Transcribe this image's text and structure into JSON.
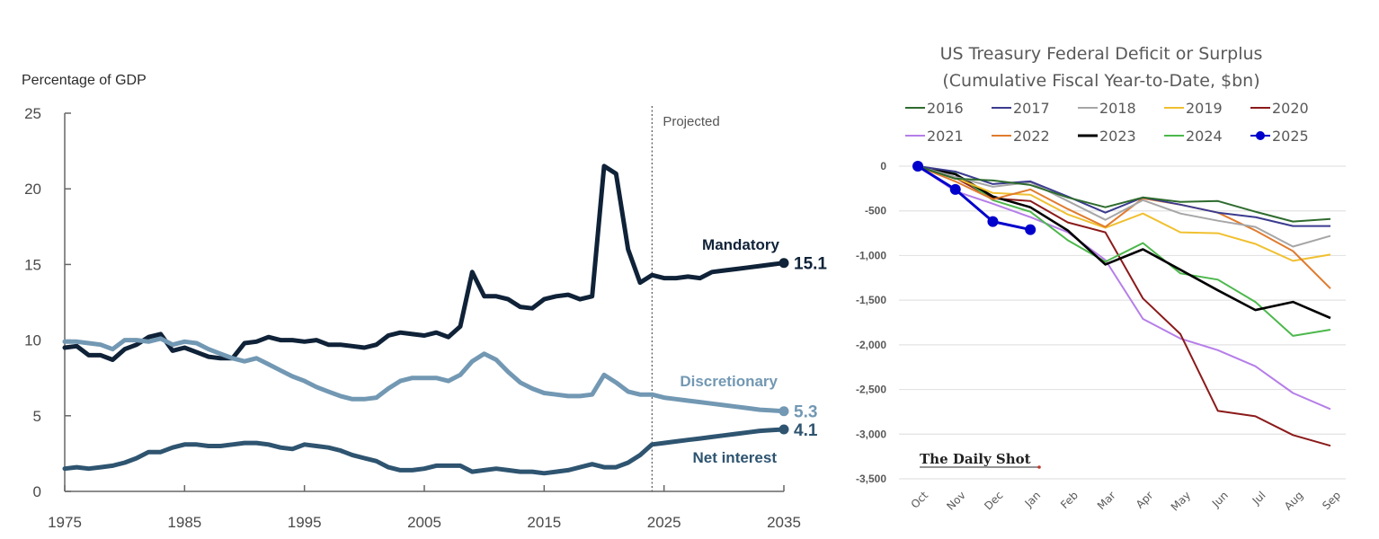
{
  "chart_data": [
    {
      "type": "line",
      "title": "",
      "ylabel": "Percentage of GDP",
      "xlabel": "",
      "xlim": [
        1975,
        2035
      ],
      "ylim": [
        0,
        25
      ],
      "x_ticks": [
        "1975",
        "1985",
        "1995",
        "2005",
        "2015",
        "2025",
        "2035"
      ],
      "y_ticks": [
        "0",
        "5",
        "10",
        "15",
        "20",
        "25"
      ],
      "grid": false,
      "projection_start": 2024,
      "projection_label": "Projected",
      "series": [
        {
          "name": "Mandatory",
          "color": "#0f2238",
          "end_label": "15.1",
          "points": [
            [
              1975,
              9.5
            ],
            [
              1976,
              9.6
            ],
            [
              1977,
              9.0
            ],
            [
              1978,
              9.0
            ],
            [
              1979,
              8.7
            ],
            [
              1980,
              9.4
            ],
            [
              1981,
              9.7
            ],
            [
              1982,
              10.2
            ],
            [
              1983,
              10.4
            ],
            [
              1984,
              9.3
            ],
            [
              1985,
              9.5
            ],
            [
              1986,
              9.2
            ],
            [
              1987,
              8.9
            ],
            [
              1988,
              8.8
            ],
            [
              1989,
              8.8
            ],
            [
              1990,
              9.8
            ],
            [
              1991,
              9.9
            ],
            [
              1992,
              10.2
            ],
            [
              1993,
              10.0
            ],
            [
              1994,
              10.0
            ],
            [
              1995,
              9.9
            ],
            [
              1996,
              10.0
            ],
            [
              1997,
              9.7
            ],
            [
              1998,
              9.7
            ],
            [
              1999,
              9.6
            ],
            [
              2000,
              9.5
            ],
            [
              2001,
              9.7
            ],
            [
              2002,
              10.3
            ],
            [
              2003,
              10.5
            ],
            [
              2004,
              10.4
            ],
            [
              2005,
              10.3
            ],
            [
              2006,
              10.5
            ],
            [
              2007,
              10.2
            ],
            [
              2008,
              10.9
            ],
            [
              2009,
              14.5
            ],
            [
              2010,
              12.9
            ],
            [
              2011,
              12.9
            ],
            [
              2012,
              12.7
            ],
            [
              2013,
              12.2
            ],
            [
              2014,
              12.1
            ],
            [
              2015,
              12.7
            ],
            [
              2016,
              12.9
            ],
            [
              2017,
              13.0
            ],
            [
              2018,
              12.7
            ],
            [
              2019,
              12.9
            ],
            [
              2020,
              21.5
            ],
            [
              2021,
              21.0
            ],
            [
              2022,
              16.0
            ],
            [
              2023,
              13.8
            ],
            [
              2024,
              14.3
            ],
            [
              2025,
              14.1
            ],
            [
              2026,
              14.1
            ],
            [
              2027,
              14.2
            ],
            [
              2028,
              14.1
            ],
            [
              2029,
              14.5
            ],
            [
              2030,
              14.6
            ],
            [
              2031,
              14.7
            ],
            [
              2032,
              14.8
            ],
            [
              2033,
              14.9
            ],
            [
              2034,
              15.0
            ],
            [
              2035,
              15.1
            ]
          ]
        },
        {
          "name": "Discretionary",
          "color": "#7298b3",
          "end_label": "5.3",
          "points": [
            [
              1975,
              9.9
            ],
            [
              1976,
              9.9
            ],
            [
              1977,
              9.8
            ],
            [
              1978,
              9.7
            ],
            [
              1979,
              9.4
            ],
            [
              1980,
              10.0
            ],
            [
              1981,
              10.0
            ],
            [
              1982,
              9.9
            ],
            [
              1983,
              10.1
            ],
            [
              1984,
              9.7
            ],
            [
              1985,
              9.9
            ],
            [
              1986,
              9.8
            ],
            [
              1987,
              9.4
            ],
            [
              1988,
              9.1
            ],
            [
              1989,
              8.8
            ],
            [
              1990,
              8.6
            ],
            [
              1991,
              8.8
            ],
            [
              1992,
              8.4
            ],
            [
              1993,
              8.0
            ],
            [
              1994,
              7.6
            ],
            [
              1995,
              7.3
            ],
            [
              1996,
              6.9
            ],
            [
              1997,
              6.6
            ],
            [
              1998,
              6.3
            ],
            [
              1999,
              6.1
            ],
            [
              2000,
              6.1
            ],
            [
              2001,
              6.2
            ],
            [
              2002,
              6.8
            ],
            [
              2003,
              7.3
            ],
            [
              2004,
              7.5
            ],
            [
              2005,
              7.5
            ],
            [
              2006,
              7.5
            ],
            [
              2007,
              7.3
            ],
            [
              2008,
              7.7
            ],
            [
              2009,
              8.6
            ],
            [
              2010,
              9.1
            ],
            [
              2011,
              8.7
            ],
            [
              2012,
              7.9
            ],
            [
              2013,
              7.2
            ],
            [
              2014,
              6.8
            ],
            [
              2015,
              6.5
            ],
            [
              2016,
              6.4
            ],
            [
              2017,
              6.3
            ],
            [
              2018,
              6.3
            ],
            [
              2019,
              6.4
            ],
            [
              2020,
              7.7
            ],
            [
              2021,
              7.2
            ],
            [
              2022,
              6.6
            ],
            [
              2023,
              6.4
            ],
            [
              2024,
              6.4
            ],
            [
              2025,
              6.2
            ],
            [
              2026,
              6.1
            ],
            [
              2027,
              6.0
            ],
            [
              2028,
              5.9
            ],
            [
              2029,
              5.8
            ],
            [
              2030,
              5.7
            ],
            [
              2031,
              5.6
            ],
            [
              2032,
              5.5
            ],
            [
              2033,
              5.4
            ],
            [
              2034,
              5.35
            ],
            [
              2035,
              5.3
            ]
          ]
        },
        {
          "name": "Net interest",
          "color": "#2e5470",
          "end_label": "4.1",
          "points": [
            [
              1975,
              1.5
            ],
            [
              1976,
              1.6
            ],
            [
              1977,
              1.5
            ],
            [
              1978,
              1.6
            ],
            [
              1979,
              1.7
            ],
            [
              1980,
              1.9
            ],
            [
              1981,
              2.2
            ],
            [
              1982,
              2.6
            ],
            [
              1983,
              2.6
            ],
            [
              1984,
              2.9
            ],
            [
              1985,
              3.1
            ],
            [
              1986,
              3.1
            ],
            [
              1987,
              3.0
            ],
            [
              1988,
              3.0
            ],
            [
              1989,
              3.1
            ],
            [
              1990,
              3.2
            ],
            [
              1991,
              3.2
            ],
            [
              1992,
              3.1
            ],
            [
              1993,
              2.9
            ],
            [
              1994,
              2.8
            ],
            [
              1995,
              3.1
            ],
            [
              1996,
              3.0
            ],
            [
              1997,
              2.9
            ],
            [
              1998,
              2.7
            ],
            [
              1999,
              2.4
            ],
            [
              2000,
              2.2
            ],
            [
              2001,
              2.0
            ],
            [
              2002,
              1.6
            ],
            [
              2003,
              1.4
            ],
            [
              2004,
              1.4
            ],
            [
              2005,
              1.5
            ],
            [
              2006,
              1.7
            ],
            [
              2007,
              1.7
            ],
            [
              2008,
              1.7
            ],
            [
              2009,
              1.3
            ],
            [
              2010,
              1.4
            ],
            [
              2011,
              1.5
            ],
            [
              2012,
              1.4
            ],
            [
              2013,
              1.3
            ],
            [
              2014,
              1.3
            ],
            [
              2015,
              1.2
            ],
            [
              2016,
              1.3
            ],
            [
              2017,
              1.4
            ],
            [
              2018,
              1.6
            ],
            [
              2019,
              1.8
            ],
            [
              2020,
              1.6
            ],
            [
              2021,
              1.6
            ],
            [
              2022,
              1.9
            ],
            [
              2023,
              2.4
            ],
            [
              2024,
              3.1
            ],
            [
              2025,
              3.2
            ],
            [
              2026,
              3.3
            ],
            [
              2027,
              3.4
            ],
            [
              2028,
              3.5
            ],
            [
              2029,
              3.6
            ],
            [
              2030,
              3.7
            ],
            [
              2031,
              3.8
            ],
            [
              2032,
              3.9
            ],
            [
              2033,
              4.0
            ],
            [
              2034,
              4.05
            ],
            [
              2035,
              4.1
            ]
          ]
        }
      ]
    },
    {
      "type": "line",
      "title": "US Treasury Federal Deficit or Surplus",
      "subtitle": "(Cumulative Fiscal Year-to-Date, $bn)",
      "xlabel": "",
      "ylabel": "",
      "categories": [
        "Oct",
        "Nov",
        "Dec",
        "Jan",
        "Feb",
        "Mar",
        "Apr",
        "May",
        "Jun",
        "Jul",
        "Aug",
        "Sep"
      ],
      "ylim": [
        -3500,
        0
      ],
      "y_ticks": [
        "0",
        "-500",
        "-1,000",
        "-1,500",
        "-2,000",
        "-2,500",
        "-3,000",
        "-3,500"
      ],
      "grid": true,
      "legend_position": "top",
      "watermark": "The Daily Shot",
      "series": [
        {
          "name": "2016",
          "color": "#2e6b2e",
          "values": [
            0,
            -140,
            -160,
            -210,
            -350,
            -460,
            -350,
            -400,
            -390,
            -510,
            -620,
            -590
          ]
        },
        {
          "name": "2017",
          "color": "#3b3b8f",
          "values": [
            0,
            -60,
            -200,
            -170,
            -340,
            -520,
            -350,
            -430,
            -520,
            -570,
            -670,
            -670
          ]
        },
        {
          "name": "2018",
          "color": "#a6a6a6",
          "values": [
            0,
            -120,
            -230,
            -180,
            -390,
            -600,
            -380,
            -530,
            -610,
            -680,
            -900,
            -780
          ]
        },
        {
          "name": "2019",
          "color": "#f0c030",
          "values": [
            0,
            -130,
            -300,
            -320,
            -540,
            -690,
            -530,
            -740,
            -750,
            -870,
            -1060,
            -990
          ]
        },
        {
          "name": "2020",
          "color": "#8b1a1a",
          "values": [
            0,
            -130,
            -360,
            -390,
            -630,
            -740,
            -1480,
            -1880,
            -2740,
            -2800,
            -3010,
            -3130
          ]
        },
        {
          "name": "2021",
          "color": "#b57ee8",
          "values": [
            0,
            -280,
            -420,
            -570,
            -740,
            -1050,
            -1710,
            -1930,
            -2060,
            -2240,
            -2540,
            -2720
          ]
        },
        {
          "name": "2022",
          "color": "#e07b2e",
          "values": [
            0,
            -170,
            -370,
            -260,
            -480,
            -680,
            -360,
            -430,
            -520,
            -720,
            -950,
            -1370
          ]
        },
        {
          "name": "2023",
          "color": "#000000",
          "values": [
            0,
            -90,
            -340,
            -460,
            -720,
            -1100,
            -930,
            -1160,
            -1390,
            -1610,
            -1520,
            -1700
          ]
        },
        {
          "name": "2024",
          "color": "#4cb84c",
          "values": [
            0,
            -80,
            -380,
            -510,
            -830,
            -1070,
            -860,
            -1200,
            -1270,
            -1520,
            -1900,
            -1830
          ]
        },
        {
          "name": "2025",
          "color": "#0000cc",
          "values": [
            0,
            -260,
            -620,
            -710
          ],
          "markers": true
        }
      ]
    }
  ]
}
